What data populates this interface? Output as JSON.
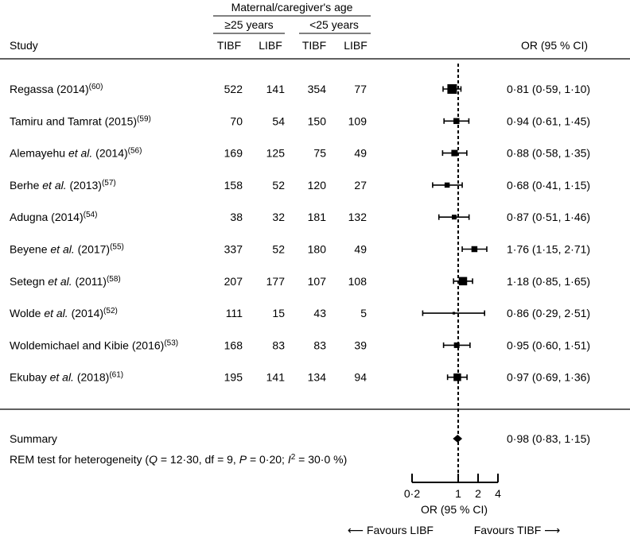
{
  "header": {
    "group_title": "Maternal/caregiver's age",
    "group_left": "≥25 years",
    "group_right": "<25 years",
    "col_study": "Study",
    "col_tibf_1": "TIBF",
    "col_libf_1": "LIBF",
    "col_tibf_2": "TIBF",
    "col_libf_2": "LIBF",
    "col_or": "OR (95 % CI)"
  },
  "rows": [
    {
      "study": [
        {
          "t": "Regassa (2014)"
        },
        {
          "t": "(60)",
          "sup": true
        }
      ],
      "tibf1": "522",
      "libf1": "141",
      "tibf2": "354",
      "libf2": "77",
      "ci_text": "0·81 (0·59, 1·10)"
    },
    {
      "study": [
        {
          "t": "Tamiru and Tamrat (2015)"
        },
        {
          "t": "(59)",
          "sup": true
        }
      ],
      "tibf1": "70",
      "libf1": "54",
      "tibf2": "150",
      "libf2": "109",
      "ci_text": "0·94 (0·61, 1·45)"
    },
    {
      "study": [
        {
          "t": "Alemayehu "
        },
        {
          "t": "et al.",
          "i": true
        },
        {
          "t": " (2014)"
        },
        {
          "t": "(56)",
          "sup": true
        }
      ],
      "tibf1": "169",
      "libf1": "125",
      "tibf2": "75",
      "libf2": "49",
      "ci_text": "0·88 (0·58, 1·35)"
    },
    {
      "study": [
        {
          "t": "Berhe "
        },
        {
          "t": "et al.",
          "i": true
        },
        {
          "t": " (2013)"
        },
        {
          "t": "(57)",
          "sup": true
        }
      ],
      "tibf1": "158",
      "libf1": "52",
      "tibf2": "120",
      "libf2": "27",
      "ci_text": "0·68 (0·41, 1·15)"
    },
    {
      "study": [
        {
          "t": "Adugna (2014)"
        },
        {
          "t": "(54)",
          "sup": true
        }
      ],
      "tibf1": "38",
      "libf1": "32",
      "tibf2": "181",
      "libf2": "132",
      "ci_text": "0·87 (0·51, 1·46)"
    },
    {
      "study": [
        {
          "t": "Beyene "
        },
        {
          "t": "et al.",
          "i": true
        },
        {
          "t": " (2017)"
        },
        {
          "t": "(55)",
          "sup": true
        }
      ],
      "tibf1": "337",
      "libf1": "52",
      "tibf2": "180",
      "libf2": "49",
      "ci_text": "1·76 (1·15, 2·71)"
    },
    {
      "study": [
        {
          "t": "Setegn "
        },
        {
          "t": "et al.",
          "i": true
        },
        {
          "t": " (2011)"
        },
        {
          "t": "(58)",
          "sup": true
        }
      ],
      "tibf1": "207",
      "libf1": "177",
      "tibf2": "107",
      "libf2": "108",
      "ci_text": "1·18 (0·85, 1·65)"
    },
    {
      "study": [
        {
          "t": "Wolde "
        },
        {
          "t": "et al.",
          "i": true
        },
        {
          "t": " (2014)"
        },
        {
          "t": "(52)",
          "sup": true
        }
      ],
      "tibf1": "111",
      "libf1": "15",
      "tibf2": "43",
      "libf2": "5",
      "ci_text": "0·86 (0·29, 2·51)"
    },
    {
      "study": [
        {
          "t": "Woldemichael and Kibie (2016)"
        },
        {
          "t": "(53)",
          "sup": true
        }
      ],
      "tibf1": "168",
      "libf1": "83",
      "tibf2": "83",
      "libf2": "39",
      "ci_text": "0·95 (0·60, 1·51)"
    },
    {
      "study": [
        {
          "t": "Ekubay "
        },
        {
          "t": "et al.",
          "i": true
        },
        {
          "t": " (2018)"
        },
        {
          "t": "(61)",
          "sup": true
        }
      ],
      "tibf1": "195",
      "libf1": "141",
      "tibf2": "134",
      "libf2": "94",
      "ci_text": "0·97 (0·69, 1·36)"
    }
  ],
  "summary": {
    "label": "Summary",
    "ci_text": "0·98 (0·83, 1·15)",
    "heterogeneity": [
      {
        "t": "REM test for heterogeneity ("
      },
      {
        "t": "Q",
        "i": true
      },
      {
        "t": " = 12·30, df = 9, "
      },
      {
        "t": "P",
        "i": true
      },
      {
        "t": " = 0·20; "
      },
      {
        "t": "I",
        "i": true
      },
      {
        "t": "2",
        "sup": true
      },
      {
        "t": " = 30·0 %)"
      }
    ]
  },
  "axis": {
    "label": "OR (95 % CI)",
    "favours_left": "⟵ Favours LIBF",
    "favours_right": "Favours TIBF ⟶"
  },
  "chart_data": {
    "type": "forest",
    "x_scale": "log",
    "xlim": [
      0.2,
      4
    ],
    "xticks": [
      0.2,
      1,
      2,
      4
    ],
    "xtick_labels": [
      "0·2",
      "1",
      "2",
      "4"
    ],
    "reference_line": 1,
    "xlabel": "OR (95 % CI)",
    "studies": [
      {
        "or": 0.81,
        "lo": 0.59,
        "hi": 1.1,
        "weight": 1.0
      },
      {
        "or": 0.94,
        "lo": 0.61,
        "hi": 1.45,
        "weight": 0.55
      },
      {
        "or": 0.88,
        "lo": 0.58,
        "hi": 1.35,
        "weight": 0.6
      },
      {
        "or": 0.68,
        "lo": 0.41,
        "hi": 1.15,
        "weight": 0.45
      },
      {
        "or": 0.87,
        "lo": 0.51,
        "hi": 1.46,
        "weight": 0.4
      },
      {
        "or": 1.76,
        "lo": 1.15,
        "hi": 2.71,
        "weight": 0.55
      },
      {
        "or": 1.18,
        "lo": 0.85,
        "hi": 1.65,
        "weight": 0.85
      },
      {
        "or": 0.86,
        "lo": 0.29,
        "hi": 2.51,
        "weight": 0.12
      },
      {
        "or": 0.95,
        "lo": 0.6,
        "hi": 1.51,
        "weight": 0.5
      },
      {
        "or": 0.97,
        "lo": 0.69,
        "hi": 1.36,
        "weight": 0.75
      }
    ],
    "summary": {
      "or": 0.98,
      "lo": 0.83,
      "hi": 1.15
    }
  }
}
